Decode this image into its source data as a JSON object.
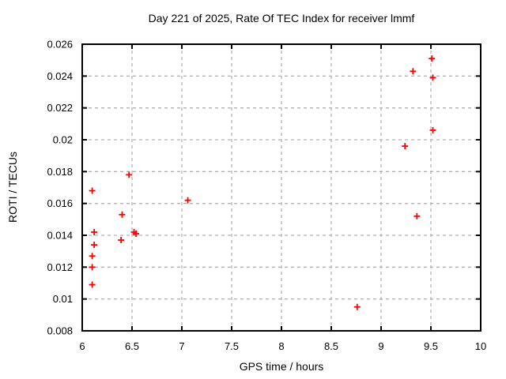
{
  "chart_data": {
    "type": "scatter",
    "title": "Day 221 of 2025, Rate Of TEC Index for receiver lmmf",
    "xlabel": "GPS time / hours",
    "ylabel": "ROTI / TECUs",
    "xlim": [
      6,
      10
    ],
    "ylim": [
      0.008,
      0.026
    ],
    "grid": true,
    "legend": null,
    "x_ticks": [
      {
        "value": 6,
        "label": "6"
      },
      {
        "value": 6.5,
        "label": "6.5"
      },
      {
        "value": 7,
        "label": "7"
      },
      {
        "value": 7.5,
        "label": "7.5"
      },
      {
        "value": 8,
        "label": "8"
      },
      {
        "value": 8.5,
        "label": "8.5"
      },
      {
        "value": 9,
        "label": "9"
      },
      {
        "value": 9.5,
        "label": "9.5"
      },
      {
        "value": 10,
        "label": "10"
      }
    ],
    "y_ticks": [
      {
        "value": 0.008,
        "label": "0.008"
      },
      {
        "value": 0.01,
        "label": "0.01"
      },
      {
        "value": 0.012,
        "label": "0.012"
      },
      {
        "value": 0.014,
        "label": "0.014"
      },
      {
        "value": 0.016,
        "label": "0.016"
      },
      {
        "value": 0.018,
        "label": "0.018"
      },
      {
        "value": 0.02,
        "label": "0.02"
      },
      {
        "value": 0.022,
        "label": "0.022"
      },
      {
        "value": 0.024,
        "label": "0.024"
      },
      {
        "value": 0.026,
        "label": "0.026"
      }
    ],
    "series": [
      {
        "name": "ROTI",
        "marker": "plus",
        "color": "#ff0000",
        "points": [
          [
            6.1,
            0.0168
          ],
          [
            6.12,
            0.0142
          ],
          [
            6.12,
            0.0134
          ],
          [
            6.1,
            0.0127
          ],
          [
            6.1,
            0.012
          ],
          [
            6.1,
            0.0109
          ],
          [
            6.39,
            0.0137
          ],
          [
            6.4,
            0.0153
          ],
          [
            6.47,
            0.0178
          ],
          [
            6.52,
            0.0142
          ],
          [
            6.54,
            0.0141
          ],
          [
            7.06,
            0.0162
          ],
          [
            8.76,
            0.0095
          ],
          [
            9.24,
            0.0196
          ],
          [
            9.32,
            0.0243
          ],
          [
            9.36,
            0.0152
          ],
          [
            9.51,
            0.0251
          ],
          [
            9.52,
            0.0239
          ],
          [
            9.52,
            0.0206
          ]
        ]
      }
    ],
    "colors": {
      "marker": "#ff0000",
      "grid": "#b3b3b3",
      "axis": "#000000",
      "text": "#000000",
      "background": "#ffffff"
    }
  }
}
